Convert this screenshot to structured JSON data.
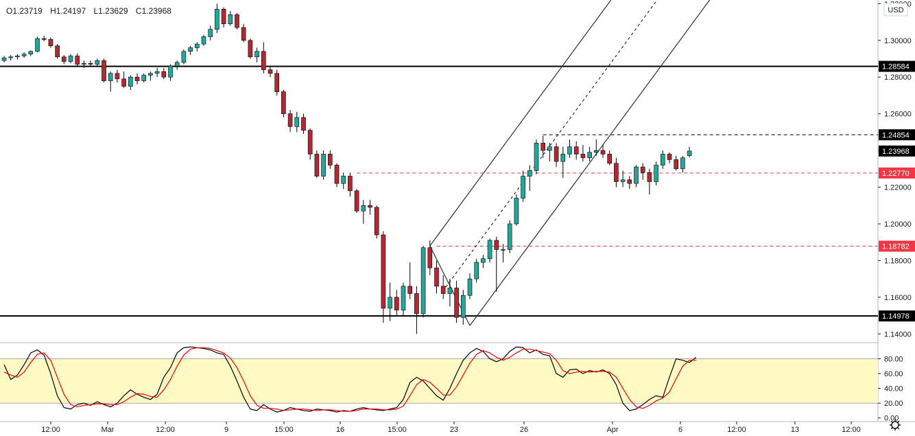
{
  "ohlc": {
    "open_label": "O",
    "open": "1.23719",
    "high_label": "H",
    "high": "1.24197",
    "low_label": "L",
    "low": "1.23629",
    "close_label": "C",
    "close": "1.23968"
  },
  "currency": "USD",
  "icons": {
    "settings": "gear-icon"
  },
  "colors": {
    "up": "#26a69a",
    "down": "#b22833",
    "support": "#000000",
    "red_level": "#f23645",
    "stoch_k": "#000000",
    "stoch_d": "#ff0000",
    "stoch_band": "#fff9c4",
    "last_price": "#000000"
  },
  "chart_data": [
    {
      "type": "candlestick",
      "title": "",
      "xlabel": "",
      "ylabel": "",
      "x_ticks": [
        "12:00",
        "Mar",
        "12:00",
        "9",
        "15:00",
        "16",
        "15:00",
        "23",
        "26",
        "Apr",
        "6",
        "12:00",
        "13",
        "12:00"
      ],
      "y_ticks": [
        "1.14000",
        "1.16000",
        "1.18000",
        "1.20000",
        "1.22000",
        "1.24000",
        "1.26000",
        "1.28000",
        "1.30000",
        "1.32000"
      ],
      "ylim": [
        1.136,
        1.322
      ],
      "grid": false,
      "horizontal_levels": [
        {
          "value": "1.28584",
          "style": "solid",
          "color": "#000000"
        },
        {
          "value": "1.14978",
          "style": "solid",
          "color": "#000000"
        },
        {
          "value": "1.24854",
          "style": "dashed",
          "color": "#000000"
        },
        {
          "value": "1.22770",
          "style": "dashed",
          "color": "#f23645"
        },
        {
          "value": "1.18782",
          "style": "dashed",
          "color": "#f23645"
        }
      ],
      "last_price": "1.23968",
      "price_channel": {
        "upper": "solid",
        "middle": "dashed",
        "lower": "solid"
      },
      "candles": [
        [
          1.289,
          1.2915,
          1.288,
          1.2905
        ],
        [
          1.2905,
          1.292,
          1.289,
          1.291
        ],
        [
          1.291,
          1.2925,
          1.2895,
          1.2915
        ],
        [
          1.2915,
          1.2935,
          1.2905,
          1.2925
        ],
        [
          1.2925,
          1.2945,
          1.2915,
          1.294
        ],
        [
          1.294,
          1.302,
          1.2935,
          1.301
        ],
        [
          1.301,
          1.3025,
          1.2995,
          1.3005
        ],
        [
          1.3005,
          1.3015,
          1.296,
          1.297
        ],
        [
          1.297,
          1.298,
          1.29,
          1.291
        ],
        [
          1.291,
          1.292,
          1.287,
          1.2885
        ],
        [
          1.2885,
          1.2925,
          1.2875,
          1.2915
        ],
        [
          1.2915,
          1.293,
          1.286,
          1.287
        ],
        [
          1.287,
          1.289,
          1.285,
          1.2875
        ],
        [
          1.2875,
          1.289,
          1.286,
          1.287
        ],
        [
          1.287,
          1.29,
          1.286,
          1.289
        ],
        [
          1.289,
          1.29,
          1.277,
          1.278
        ],
        [
          1.278,
          1.283,
          1.272,
          1.282
        ],
        [
          1.282,
          1.284,
          1.277,
          1.279
        ],
        [
          1.279,
          1.283,
          1.274,
          1.275
        ],
        [
          1.275,
          1.281,
          1.273,
          1.28
        ],
        [
          1.28,
          1.282,
          1.276,
          1.278
        ],
        [
          1.278,
          1.282,
          1.277,
          1.281
        ],
        [
          1.281,
          1.283,
          1.278,
          1.282
        ],
        [
          1.282,
          1.285,
          1.28,
          1.283
        ],
        [
          1.283,
          1.285,
          1.279,
          1.28
        ],
        [
          1.28,
          1.287,
          1.278,
          1.286
        ],
        [
          1.286,
          1.289,
          1.284,
          1.288
        ],
        [
          1.288,
          1.295,
          1.287,
          1.294
        ],
        [
          1.294,
          1.297,
          1.292,
          1.296
        ],
        [
          1.296,
          1.299,
          1.294,
          1.298
        ],
        [
          1.298,
          1.303,
          1.297,
          1.302
        ],
        [
          1.302,
          1.308,
          1.3,
          1.306
        ],
        [
          1.306,
          1.32,
          1.304,
          1.317
        ],
        [
          1.317,
          1.318,
          1.307,
          1.309
        ],
        [
          1.309,
          1.316,
          1.308,
          1.314
        ],
        [
          1.314,
          1.315,
          1.306,
          1.307
        ],
        [
          1.307,
          1.309,
          1.299,
          1.3
        ],
        [
          1.3,
          1.301,
          1.29,
          1.291
        ],
        [
          1.291,
          1.296,
          1.288,
          1.294
        ],
        [
          1.294,
          1.299,
          1.282,
          1.284
        ],
        [
          1.284,
          1.286,
          1.28,
          1.282
        ],
        [
          1.282,
          1.284,
          1.27,
          1.272
        ],
        [
          1.272,
          1.273,
          1.258,
          1.26
        ],
        [
          1.26,
          1.262,
          1.25,
          1.253
        ],
        [
          1.253,
          1.261,
          1.25,
          1.258
        ],
        [
          1.258,
          1.26,
          1.249,
          1.251
        ],
        [
          1.251,
          1.252,
          1.235,
          1.238
        ],
        [
          1.238,
          1.24,
          1.225,
          1.226
        ],
        [
          1.226,
          1.24,
          1.224,
          1.238
        ],
        [
          1.238,
          1.24,
          1.23,
          1.232
        ],
        [
          1.232,
          1.233,
          1.22,
          1.222
        ],
        [
          1.222,
          1.228,
          1.219,
          1.226
        ],
        [
          1.226,
          1.228,
          1.215,
          1.218
        ],
        [
          1.218,
          1.219,
          1.206,
          1.207
        ],
        [
          1.207,
          1.213,
          1.2,
          1.21
        ],
        [
          1.21,
          1.213,
          1.205,
          1.209
        ],
        [
          1.209,
          1.21,
          1.192,
          1.194
        ],
        [
          1.194,
          1.196,
          1.146,
          1.154
        ],
        [
          1.154,
          1.168,
          1.147,
          1.16
        ],
        [
          1.16,
          1.164,
          1.15,
          1.153
        ],
        [
          1.153,
          1.168,
          1.15,
          1.166
        ],
        [
          1.166,
          1.179,
          1.159,
          1.162
        ],
        [
          1.162,
          1.166,
          1.14,
          1.151
        ],
        [
          1.151,
          1.188,
          1.149,
          1.187
        ],
        [
          1.187,
          1.191,
          1.172,
          1.176
        ],
        [
          1.176,
          1.18,
          1.162,
          1.166
        ],
        [
          1.166,
          1.172,
          1.159,
          1.162
        ],
        [
          1.162,
          1.17,
          1.155,
          1.165
        ],
        [
          1.165,
          1.169,
          1.146,
          1.149
        ],
        [
          1.149,
          1.164,
          1.145,
          1.161
        ],
        [
          1.161,
          1.173,
          1.159,
          1.17
        ],
        [
          1.17,
          1.181,
          1.168,
          1.179
        ],
        [
          1.179,
          1.183,
          1.176,
          1.181
        ],
        [
          1.181,
          1.192,
          1.179,
          1.191
        ],
        [
          1.191,
          1.193,
          1.163,
          1.186
        ],
        [
          1.186,
          1.189,
          1.179,
          1.186
        ],
        [
          1.186,
          1.202,
          1.184,
          1.2
        ],
        [
          1.2,
          1.216,
          1.199,
          1.214
        ],
        [
          1.214,
          1.229,
          1.212,
          1.226
        ],
        [
          1.226,
          1.232,
          1.218,
          1.229
        ],
        [
          1.229,
          1.246,
          1.227,
          1.244
        ],
        [
          1.244,
          1.248,
          1.236,
          1.24
        ],
        [
          1.24,
          1.244,
          1.234,
          1.242
        ],
        [
          1.242,
          1.244,
          1.231,
          1.234
        ],
        [
          1.234,
          1.242,
          1.225,
          1.238
        ],
        [
          1.238,
          1.246,
          1.236,
          1.242
        ],
        [
          1.242,
          1.245,
          1.235,
          1.238
        ],
        [
          1.238,
          1.243,
          1.234,
          1.236
        ],
        [
          1.236,
          1.242,
          1.234,
          1.239
        ],
        [
          1.239,
          1.246,
          1.237,
          1.24
        ],
        [
          1.24,
          1.243,
          1.236,
          1.238
        ],
        [
          1.238,
          1.24,
          1.232,
          1.233
        ],
        [
          1.233,
          1.236,
          1.22,
          1.223
        ],
        [
          1.223,
          1.229,
          1.22,
          1.224
        ],
        [
          1.224,
          1.226,
          1.219,
          1.222
        ],
        [
          1.222,
          1.232,
          1.22,
          1.231
        ],
        [
          1.231,
          1.233,
          1.224,
          1.228
        ],
        [
          1.228,
          1.23,
          1.216,
          1.223
        ],
        [
          1.223,
          1.234,
          1.221,
          1.232
        ],
        [
          1.232,
          1.24,
          1.23,
          1.238
        ],
        [
          1.238,
          1.239,
          1.233,
          1.235
        ],
        [
          1.235,
          1.237,
          1.229,
          1.23
        ],
        [
          1.23,
          1.237,
          1.228,
          1.236
        ],
        [
          1.2372,
          1.242,
          1.2363,
          1.2397
        ]
      ]
    },
    {
      "type": "line",
      "title": "",
      "y_ticks": [
        "0.00",
        "20.00",
        "40.00",
        "60.00",
        "80.00"
      ],
      "ylim": [
        -4,
        100
      ],
      "band": [
        20,
        80
      ],
      "series": [
        {
          "values": [
            72,
            52,
            58,
            72,
            88,
            92,
            85,
            60,
            30,
            14,
            12,
            18,
            20,
            17,
            22,
            18,
            15,
            20,
            30,
            38,
            32,
            28,
            25,
            32,
            55,
            68,
            88,
            95,
            96,
            95,
            94,
            92,
            88,
            86,
            70,
            50,
            28,
            12,
            10,
            18,
            12,
            8,
            10,
            14,
            12,
            10,
            9,
            12,
            11,
            10,
            8,
            10,
            9,
            12,
            14,
            12,
            11,
            10,
            12,
            14,
            25,
            48,
            55,
            50,
            40,
            30,
            24,
            40,
            60,
            78,
            88,
            94,
            90,
            80,
            76,
            80,
            90,
            96,
            95,
            88,
            92,
            86,
            84,
            60,
            55,
            65,
            66,
            60,
            64,
            62,
            65,
            60,
            45,
            20,
            10,
            12,
            18,
            25,
            30,
            28,
            55,
            80,
            78,
            75,
            82
          ]
        },
        {
          "values": [
            62,
            58,
            55,
            62,
            75,
            86,
            88,
            78,
            55,
            32,
            18,
            15,
            17,
            18,
            19,
            19,
            18,
            18,
            22,
            28,
            33,
            32,
            29,
            28,
            38,
            52,
            70,
            85,
            93,
            95,
            95,
            94,
            91,
            88,
            81,
            68,
            50,
            30,
            17,
            13,
            13,
            12,
            10,
            11,
            12,
            12,
            11,
            10,
            11,
            11,
            10,
            9,
            9,
            10,
            12,
            12,
            12,
            11,
            11,
            12,
            16,
            30,
            45,
            52,
            48,
            40,
            31,
            31,
            42,
            58,
            74,
            86,
            91,
            88,
            82,
            78,
            82,
            88,
            93,
            93,
            91,
            89,
            87,
            78,
            64,
            60,
            62,
            63,
            62,
            63,
            63,
            62,
            55,
            40,
            25,
            15,
            13,
            17,
            23,
            27,
            35,
            53,
            70,
            78,
            78
          ]
        }
      ]
    }
  ]
}
